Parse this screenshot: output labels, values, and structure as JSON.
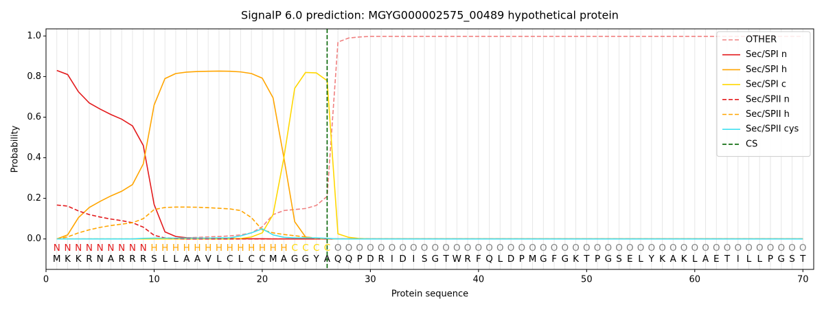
{
  "chart_data": {
    "type": "line",
    "title": "SignalP 6.0 prediction: MGYG000002575_00489 hypothetical protein",
    "x_label": "Protein sequence",
    "y_label": "Probability",
    "x": [
      1,
      2,
      3,
      4,
      5,
      6,
      7,
      8,
      9,
      10,
      11,
      12,
      13,
      14,
      15,
      16,
      17,
      18,
      19,
      20,
      21,
      22,
      23,
      24,
      25,
      26,
      27,
      28,
      29,
      30,
      31,
      32,
      33,
      34,
      35,
      36,
      37,
      38,
      39,
      40,
      41,
      42,
      43,
      44,
      45,
      46,
      47,
      48,
      49,
      50,
      51,
      52,
      53,
      54,
      55,
      56,
      57,
      58,
      59,
      60,
      61,
      62,
      63,
      64,
      65,
      66,
      67,
      68,
      69,
      70
    ],
    "xlim": [
      0,
      71
    ],
    "ylim": [
      -0.15,
      1.035
    ],
    "xticks": [
      0,
      10,
      20,
      30,
      40,
      50,
      60,
      70
    ],
    "yticks": [
      {
        "value": 0,
        "label": "0.0"
      },
      {
        "value": 0.2,
        "label": "0.2"
      },
      {
        "value": 0.4,
        "label": "0.4"
      },
      {
        "value": 0.6,
        "label": "0.6"
      },
      {
        "value": 0.8,
        "label": "0.8"
      },
      {
        "value": 1,
        "label": "1.0"
      }
    ],
    "grid": true,
    "legend": "upper right",
    "sequence": [
      "M",
      "K",
      "K",
      "R",
      "N",
      "A",
      "R",
      "R",
      "R",
      "S",
      "L",
      "L",
      "A",
      "A",
      "V",
      "L",
      "C",
      "L",
      "C",
      "C",
      "M",
      "A",
      "G",
      "G",
      "Y",
      "A",
      "Q",
      "Q",
      "P",
      "D",
      "R",
      "I",
      "D",
      "I",
      "S",
      "G",
      "T",
      "W",
      "R",
      "F",
      "Q",
      "L",
      "D",
      "P",
      "M",
      "G",
      "F",
      "G",
      "K",
      "T",
      "P",
      "G",
      "S",
      "E",
      "L",
      "Y",
      "K",
      "A",
      "K",
      "L",
      "A",
      "E",
      "T",
      "I",
      "L",
      "L",
      "P",
      "G",
      "S",
      "T"
    ],
    "region_labels": [
      "N",
      "N",
      "N",
      "N",
      "N",
      "N",
      "N",
      "N",
      "N",
      "H",
      "H",
      "H",
      "H",
      "H",
      "H",
      "H",
      "H",
      "H",
      "H",
      "H",
      "H",
      "H",
      "C",
      "C",
      "C",
      "C",
      "O",
      "O",
      "O",
      "O",
      "O",
      "O",
      "O",
      "O",
      "O",
      "O",
      "O",
      "O",
      "O",
      "O",
      "O",
      "O",
      "O",
      "O",
      "O",
      "O",
      "O",
      "O",
      "O",
      "O",
      "O",
      "O",
      "O",
      "O",
      "O",
      "O",
      "O",
      "O",
      "O",
      "O",
      "O",
      "O",
      "O",
      "O",
      "O",
      "O",
      "O",
      "O",
      "O",
      "O"
    ],
    "region_colors": {
      "N": "#e31a1c",
      "H": "#ffa500",
      "C": "#ffd700",
      "O": "#808080"
    },
    "series": [
      {
        "name": "OTHER",
        "color": "#f08080",
        "style": "dashed",
        "values": [
          0,
          0,
          0,
          0,
          0,
          0,
          0,
          0,
          0,
          0,
          0,
          0.002,
          0.005,
          0.008,
          0.01,
          0.012,
          0.015,
          0.02,
          0.03,
          0.06,
          0.12,
          0.14,
          0.145,
          0.15,
          0.165,
          0.21,
          0.97,
          0.99,
          0.995,
          0.998,
          0.998,
          0.998,
          0.998,
          0.998,
          0.998,
          0.998,
          0.998,
          0.998,
          0.998,
          0.998,
          0.998,
          0.998,
          0.998,
          0.998,
          0.998,
          0.998,
          0.998,
          0.998,
          0.998,
          0.998,
          0.998,
          0.998,
          0.998,
          0.998,
          0.998,
          0.998,
          0.998,
          0.998,
          0.998,
          0.998,
          0.998,
          0.998,
          0.998,
          0.998,
          0.998,
          0.998,
          0.998,
          0.998,
          0.998,
          0.998
        ]
      },
      {
        "name": "Sec/SPI n",
        "color": "#e31a1c",
        "style": "solid",
        "values": [
          0.83,
          0.81,
          0.725,
          0.67,
          0.64,
          0.613,
          0.59,
          0.557,
          0.46,
          0.17,
          0.035,
          0.012,
          0.006,
          0.004,
          0.003,
          0.002,
          0.002,
          0.001,
          0.001,
          0.001,
          0,
          0,
          0,
          0,
          0,
          0,
          0,
          0,
          0,
          0,
          0,
          0,
          0,
          0,
          0,
          0,
          0,
          0,
          0,
          0,
          0,
          0,
          0,
          0,
          0,
          0,
          0,
          0,
          0,
          0,
          0,
          0,
          0,
          0,
          0,
          0,
          0,
          0,
          0,
          0,
          0,
          0,
          0,
          0,
          0,
          0,
          0,
          0,
          0,
          0
        ]
      },
      {
        "name": "Sec/SPI h",
        "color": "#ffa500",
        "style": "solid",
        "values": [
          0,
          0.02,
          0.105,
          0.155,
          0.185,
          0.212,
          0.235,
          0.268,
          0.37,
          0.66,
          0.79,
          0.815,
          0.822,
          0.825,
          0.826,
          0.827,
          0.826,
          0.823,
          0.815,
          0.792,
          0.695,
          0.4,
          0.085,
          0.01,
          0.002,
          0,
          0,
          0,
          0,
          0,
          0,
          0,
          0,
          0,
          0,
          0,
          0,
          0,
          0,
          0,
          0,
          0,
          0,
          0,
          0,
          0,
          0,
          0,
          0,
          0,
          0,
          0,
          0,
          0,
          0,
          0,
          0,
          0,
          0,
          0,
          0,
          0,
          0,
          0,
          0,
          0,
          0,
          0,
          0,
          0
        ]
      },
      {
        "name": "Sec/SPI c",
        "color": "#ffd700",
        "style": "solid",
        "values": [
          0,
          0,
          0,
          0,
          0,
          0,
          0,
          0,
          0,
          0,
          0,
          0,
          0,
          0,
          0,
          0,
          0,
          0.002,
          0.01,
          0.03,
          0.12,
          0.4,
          0.742,
          0.82,
          0.818,
          0.78,
          0.025,
          0.008,
          0.002,
          0,
          0,
          0,
          0,
          0,
          0,
          0,
          0,
          0,
          0,
          0,
          0,
          0,
          0,
          0,
          0,
          0,
          0,
          0,
          0,
          0,
          0,
          0,
          0,
          0,
          0,
          0,
          0,
          0,
          0,
          0,
          0,
          0,
          0,
          0,
          0,
          0,
          0,
          0,
          0,
          0
        ]
      },
      {
        "name": "Sec/SPII n",
        "color": "#e31a1c",
        "style": "dashed",
        "values": [
          0.167,
          0.162,
          0.138,
          0.12,
          0.108,
          0.098,
          0.09,
          0.08,
          0.058,
          0.018,
          0.005,
          0.002,
          0,
          0,
          0,
          0,
          0,
          0,
          0,
          0,
          0,
          0,
          0,
          0,
          0,
          0,
          0,
          0,
          0,
          0,
          0,
          0,
          0,
          0,
          0,
          0,
          0,
          0,
          0,
          0,
          0,
          0,
          0,
          0,
          0,
          0,
          0,
          0,
          0,
          0,
          0,
          0,
          0,
          0,
          0,
          0,
          0,
          0,
          0,
          0,
          0,
          0,
          0,
          0,
          0,
          0,
          0,
          0,
          0,
          0
        ]
      },
      {
        "name": "Sec/SPII h",
        "color": "#ffa500",
        "style": "dashed",
        "values": [
          0,
          0.01,
          0.03,
          0.045,
          0.057,
          0.066,
          0.073,
          0.08,
          0.1,
          0.145,
          0.155,
          0.157,
          0.157,
          0.156,
          0.154,
          0.151,
          0.148,
          0.14,
          0.105,
          0.045,
          0.03,
          0.022,
          0.016,
          0.01,
          0.004,
          0.001,
          0,
          0,
          0,
          0,
          0,
          0,
          0,
          0,
          0,
          0,
          0,
          0,
          0,
          0,
          0,
          0,
          0,
          0,
          0,
          0,
          0,
          0,
          0,
          0,
          0,
          0,
          0,
          0,
          0,
          0,
          0,
          0,
          0,
          0,
          0,
          0,
          0,
          0,
          0,
          0,
          0,
          0,
          0,
          0
        ]
      },
      {
        "name": "Sec/SPII cys",
        "color": "#40e0f0",
        "style": "solid",
        "values": [
          0,
          0,
          0,
          0,
          0,
          0,
          0,
          0,
          0.003,
          0.004,
          0.004,
          0.004,
          0.004,
          0.004,
          0.004,
          0.005,
          0.005,
          0.015,
          0.03,
          0.05,
          0.02,
          0.008,
          0.005,
          0.005,
          0.005,
          0.003,
          0,
          0,
          0,
          0,
          0,
          0,
          0,
          0,
          0,
          0,
          0,
          0,
          0,
          0,
          0,
          0,
          0,
          0,
          0,
          0,
          0,
          0,
          0,
          0,
          0,
          0,
          0,
          0,
          0,
          0,
          0,
          0,
          0,
          0,
          0,
          0,
          0,
          0,
          0,
          0,
          0,
          0,
          0,
          0
        ]
      }
    ],
    "cs_line": {
      "name": "CS",
      "x": 26,
      "color": "#006400"
    }
  }
}
